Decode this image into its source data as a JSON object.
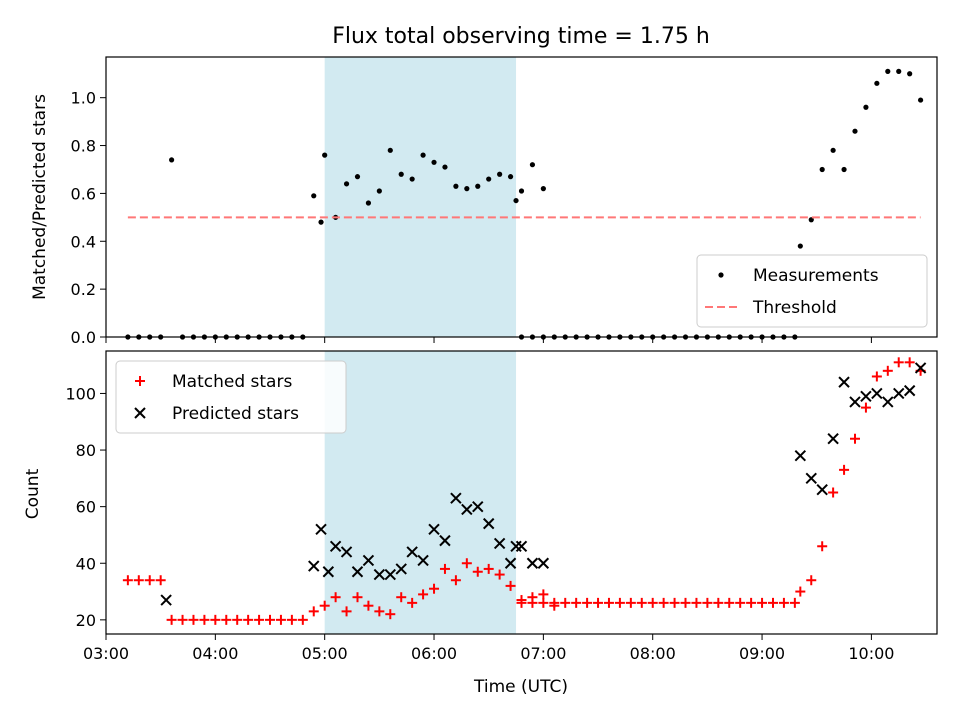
{
  "chart_data": {
    "type": "scatter",
    "title": "Flux total observing time = 1.75 h",
    "xlabel": "Time (UTC)",
    "xlim": [
      "03:00",
      "10:36"
    ],
    "x_ticks": [
      "03:00",
      "04:00",
      "05:00",
      "06:00",
      "07:00",
      "08:00",
      "09:00",
      "10:00"
    ],
    "highlight_band": {
      "start": "05:00",
      "end": "06:45",
      "color": "#add8e6"
    },
    "colors": {
      "measurements": "#000000",
      "threshold": "#ff7777",
      "matched": "#ff0000",
      "predicted": "#000000",
      "band": "#add8e6"
    },
    "panels": [
      {
        "ylabel": "Matched/Predicted stars",
        "ylim": [
          0,
          1.17
        ],
        "y_ticks": [
          "0.0",
          "0.2",
          "0.4",
          "0.6",
          "0.8",
          "1.0"
        ],
        "legend_position": "bottom-right",
        "series": [
          {
            "name": "Measurements",
            "marker": "dot",
            "points": [
              [
                "03:12",
                0
              ],
              [
                "03:18",
                0
              ],
              [
                "03:24",
                0
              ],
              [
                "03:30",
                0
              ],
              [
                "03:36",
                0.74
              ],
              [
                "03:42",
                0
              ],
              [
                "03:48",
                0
              ],
              [
                "03:54",
                0
              ],
              [
                "04:00",
                0
              ],
              [
                "04:06",
                0
              ],
              [
                "04:12",
                0
              ],
              [
                "04:18",
                0
              ],
              [
                "04:24",
                0
              ],
              [
                "04:30",
                0
              ],
              [
                "04:36",
                0
              ],
              [
                "04:42",
                0
              ],
              [
                "04:48",
                0
              ],
              [
                "04:54",
                0.59
              ],
              [
                "04:58",
                0.48
              ],
              [
                "05:00",
                0.76
              ],
              [
                "05:06",
                0.5
              ],
              [
                "05:12",
                0.64
              ],
              [
                "05:18",
                0.67
              ],
              [
                "05:24",
                0.56
              ],
              [
                "05:30",
                0.61
              ],
              [
                "05:36",
                0.78
              ],
              [
                "05:42",
                0.68
              ],
              [
                "05:48",
                0.66
              ],
              [
                "05:54",
                0.76
              ],
              [
                "06:00",
                0.73
              ],
              [
                "06:06",
                0.71
              ],
              [
                "06:12",
                0.63
              ],
              [
                "06:18",
                0.62
              ],
              [
                "06:24",
                0.63
              ],
              [
                "06:30",
                0.66
              ],
              [
                "06:36",
                0.68
              ],
              [
                "06:42",
                0.67
              ],
              [
                "06:48",
                0.61
              ],
              [
                "06:54",
                0.72
              ],
              [
                "07:00",
                0.62
              ],
              [
                "06:45",
                0.57
              ],
              [
                "06:48",
                0
              ],
              [
                "06:54",
                0
              ],
              [
                "07:00",
                0
              ],
              [
                "07:06",
                0
              ],
              [
                "07:12",
                0
              ],
              [
                "07:18",
                0
              ],
              [
                "07:24",
                0
              ],
              [
                "07:30",
                0
              ],
              [
                "07:36",
                0
              ],
              [
                "07:42",
                0
              ],
              [
                "07:48",
                0
              ],
              [
                "07:54",
                0
              ],
              [
                "08:00",
                0
              ],
              [
                "08:06",
                0
              ],
              [
                "08:12",
                0
              ],
              [
                "08:18",
                0
              ],
              [
                "08:24",
                0
              ],
              [
                "08:30",
                0
              ],
              [
                "08:36",
                0
              ],
              [
                "08:42",
                0
              ],
              [
                "08:48",
                0
              ],
              [
                "08:54",
                0
              ],
              [
                "09:00",
                0
              ],
              [
                "09:06",
                0
              ],
              [
                "09:12",
                0
              ],
              [
                "09:18",
                0
              ],
              [
                "09:21",
                0.38
              ],
              [
                "09:27",
                0.49
              ],
              [
                "09:33",
                0.7
              ],
              [
                "09:39",
                0.78
              ],
              [
                "09:45",
                0.7
              ],
              [
                "09:51",
                0.86
              ],
              [
                "09:57",
                0.96
              ],
              [
                "10:03",
                1.06
              ],
              [
                "10:09",
                1.11
              ],
              [
                "10:15",
                1.11
              ],
              [
                "10:21",
                1.1
              ],
              [
                "10:27",
                0.99
              ]
            ]
          },
          {
            "name": "Threshold",
            "type": "line",
            "style": "dashed",
            "y": 0.5,
            "x_range": [
              "03:12",
              "10:27"
            ]
          }
        ]
      },
      {
        "ylabel": "Count",
        "ylim": [
          15,
          115
        ],
        "y_ticks": [
          "20",
          "40",
          "60",
          "80",
          "100"
        ],
        "legend_position": "top-left",
        "series": [
          {
            "name": "Matched stars",
            "marker": "plus",
            "points": [
              [
                "03:12",
                34
              ],
              [
                "03:18",
                34
              ],
              [
                "03:24",
                34
              ],
              [
                "03:30",
                34
              ],
              [
                "03:36",
                20
              ],
              [
                "03:42",
                20
              ],
              [
                "03:48",
                20
              ],
              [
                "03:54",
                20
              ],
              [
                "04:00",
                20
              ],
              [
                "04:06",
                20
              ],
              [
                "04:12",
                20
              ],
              [
                "04:18",
                20
              ],
              [
                "04:24",
                20
              ],
              [
                "04:30",
                20
              ],
              [
                "04:36",
                20
              ],
              [
                "04:42",
                20
              ],
              [
                "04:48",
                20
              ],
              [
                "04:54",
                23
              ],
              [
                "05:00",
                25
              ],
              [
                "05:06",
                28
              ],
              [
                "05:12",
                23
              ],
              [
                "05:18",
                28
              ],
              [
                "05:24",
                25
              ],
              [
                "05:30",
                23
              ],
              [
                "05:36",
                22
              ],
              [
                "05:42",
                28
              ],
              [
                "05:48",
                26
              ],
              [
                "05:54",
                29
              ],
              [
                "06:00",
                31
              ],
              [
                "06:06",
                38
              ],
              [
                "06:12",
                34
              ],
              [
                "06:18",
                40
              ],
              [
                "06:24",
                37
              ],
              [
                "06:30",
                38
              ],
              [
                "06:36",
                36
              ],
              [
                "06:42",
                32
              ],
              [
                "06:48",
                27
              ],
              [
                "06:54",
                28
              ],
              [
                "07:00",
                29
              ],
              [
                "07:06",
                25
              ],
              [
                "06:48",
                26
              ],
              [
                "06:54",
                26
              ],
              [
                "07:00",
                26
              ],
              [
                "07:06",
                26
              ],
              [
                "07:12",
                26
              ],
              [
                "07:18",
                26
              ],
              [
                "07:24",
                26
              ],
              [
                "07:30",
                26
              ],
              [
                "07:36",
                26
              ],
              [
                "07:42",
                26
              ],
              [
                "07:48",
                26
              ],
              [
                "07:54",
                26
              ],
              [
                "08:00",
                26
              ],
              [
                "08:06",
                26
              ],
              [
                "08:12",
                26
              ],
              [
                "08:18",
                26
              ],
              [
                "08:24",
                26
              ],
              [
                "08:30",
                26
              ],
              [
                "08:36",
                26
              ],
              [
                "08:42",
                26
              ],
              [
                "08:48",
                26
              ],
              [
                "08:54",
                26
              ],
              [
                "09:00",
                26
              ],
              [
                "09:06",
                26
              ],
              [
                "09:12",
                26
              ],
              [
                "09:18",
                26
              ],
              [
                "09:21",
                30
              ],
              [
                "09:27",
                34
              ],
              [
                "09:33",
                46
              ],
              [
                "09:39",
                65
              ],
              [
                "09:45",
                73
              ],
              [
                "09:51",
                84
              ],
              [
                "09:57",
                95
              ],
              [
                "10:03",
                106
              ],
              [
                "10:09",
                108
              ],
              [
                "10:15",
                111
              ],
              [
                "10:21",
                111
              ],
              [
                "10:27",
                108
              ]
            ]
          },
          {
            "name": "Predicted stars",
            "marker": "x",
            "points": [
              [
                "03:33",
                27
              ],
              [
                "04:54",
                39
              ],
              [
                "04:58",
                52
              ],
              [
                "05:02",
                37
              ],
              [
                "05:06",
                46
              ],
              [
                "05:12",
                44
              ],
              [
                "05:18",
                37
              ],
              [
                "05:24",
                41
              ],
              [
                "05:30",
                36
              ],
              [
                "05:36",
                36
              ],
              [
                "05:42",
                38
              ],
              [
                "05:48",
                44
              ],
              [
                "05:54",
                41
              ],
              [
                "06:00",
                52
              ],
              [
                "06:06",
                48
              ],
              [
                "06:12",
                63
              ],
              [
                "06:18",
                59
              ],
              [
                "06:24",
                60
              ],
              [
                "06:30",
                54
              ],
              [
                "06:36",
                47
              ],
              [
                "06:42",
                40
              ],
              [
                "06:48",
                46
              ],
              [
                "06:54",
                40
              ],
              [
                "07:00",
                40
              ],
              [
                "06:45",
                46
              ],
              [
                "09:21",
                78
              ],
              [
                "09:27",
                70
              ],
              [
                "09:33",
                66
              ],
              [
                "09:39",
                84
              ],
              [
                "09:45",
                104
              ],
              [
                "09:51",
                97
              ],
              [
                "09:57",
                99
              ],
              [
                "10:03",
                100
              ],
              [
                "10:09",
                97
              ],
              [
                "10:15",
                100
              ],
              [
                "10:21",
                101
              ],
              [
                "10:27",
                109
              ]
            ]
          }
        ]
      }
    ]
  }
}
